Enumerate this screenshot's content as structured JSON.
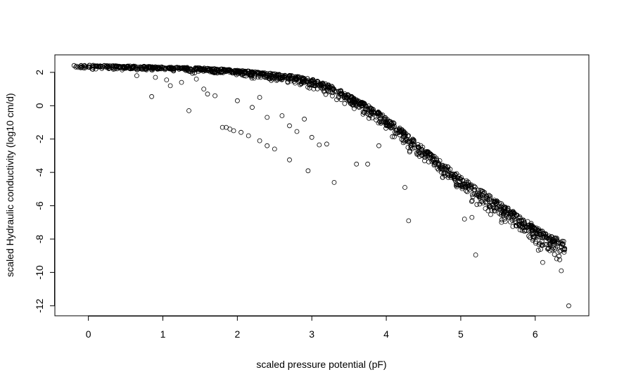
{
  "chart_data": {
    "type": "scatter",
    "title": "",
    "xlabel": "scaled pressure potential (pF)",
    "ylabel": "scaled Hydraulic conductivity (log10 cm/d)",
    "xlim": [
      -0.45,
      6.72
    ],
    "ylim": [
      -12.6,
      3.05
    ],
    "xticks": [
      0,
      1,
      2,
      3,
      4,
      5,
      6
    ],
    "yticks": [
      2,
      0,
      -2,
      -4,
      -6,
      -8,
      -10,
      -12
    ],
    "grid": false,
    "legend": "none",
    "marker": "open circle",
    "main_band": [
      [
        -0.2,
        2.4
      ],
      [
        0.0,
        2.4
      ],
      [
        0.2,
        2.38
      ],
      [
        0.4,
        2.36
      ],
      [
        0.6,
        2.34
      ],
      [
        0.8,
        2.32
      ],
      [
        1.0,
        2.3
      ],
      [
        1.2,
        2.28
      ],
      [
        1.4,
        2.25
      ],
      [
        1.6,
        2.2
      ],
      [
        1.8,
        2.15
      ],
      [
        2.0,
        2.08
      ],
      [
        2.2,
        2.0
      ],
      [
        2.4,
        1.92
      ],
      [
        2.6,
        1.82
      ],
      [
        2.8,
        1.7
      ],
      [
        3.0,
        1.5
      ],
      [
        3.2,
        1.2
      ],
      [
        3.4,
        0.8
      ],
      [
        3.6,
        0.3
      ],
      [
        3.8,
        -0.2
      ],
      [
        4.0,
        -0.8
      ],
      [
        4.2,
        -1.5
      ],
      [
        4.4,
        -2.3
      ],
      [
        4.6,
        -3.0
      ],
      [
        4.8,
        -3.7
      ],
      [
        5.0,
        -4.4
      ],
      [
        5.2,
        -5.0
      ],
      [
        5.4,
        -5.6
      ],
      [
        5.6,
        -6.2
      ],
      [
        5.8,
        -6.8
      ],
      [
        6.0,
        -7.4
      ],
      [
        6.2,
        -8.0
      ],
      [
        6.4,
        -8.3
      ]
    ],
    "outliers": [
      [
        0.85,
        0.55
      ],
      [
        1.1,
        1.2
      ],
      [
        1.25,
        1.4
      ],
      [
        1.35,
        -0.3
      ],
      [
        1.6,
        0.7
      ],
      [
        1.7,
        0.6
      ],
      [
        1.8,
        -1.3
      ],
      [
        1.85,
        -1.3
      ],
      [
        1.9,
        -1.4
      ],
      [
        1.95,
        -1.5
      ],
      [
        2.05,
        -1.6
      ],
      [
        2.15,
        -1.8
      ],
      [
        2.3,
        -2.1
      ],
      [
        2.4,
        -2.4
      ],
      [
        2.5,
        -2.6
      ],
      [
        2.7,
        -3.25
      ],
      [
        2.95,
        -3.9
      ],
      [
        3.3,
        -4.6
      ],
      [
        3.0,
        -1.9
      ],
      [
        3.1,
        -2.35
      ],
      [
        3.2,
        -2.3
      ],
      [
        3.6,
        -3.5
      ],
      [
        3.75,
        -3.5
      ],
      [
        4.25,
        -4.9
      ],
      [
        4.3,
        -6.9
      ],
      [
        5.05,
        -6.8
      ],
      [
        5.15,
        -6.7
      ],
      [
        5.2,
        -8.95
      ],
      [
        6.1,
        -9.4
      ],
      [
        6.35,
        -9.9
      ],
      [
        6.45,
        -12.0
      ],
      [
        2.2,
        -0.1
      ],
      [
        2.4,
        -0.7
      ],
      [
        2.6,
        -0.6
      ],
      [
        2.7,
        -1.2
      ],
      [
        2.8,
        -1.55
      ],
      [
        2.9,
        -0.8
      ],
      [
        1.45,
        1.6
      ],
      [
        1.55,
        1.0
      ],
      [
        0.65,
        1.8
      ],
      [
        0.9,
        1.7
      ],
      [
        1.05,
        1.55
      ],
      [
        2.0,
        0.3
      ],
      [
        2.3,
        0.5
      ],
      [
        3.9,
        -2.4
      ]
    ]
  }
}
